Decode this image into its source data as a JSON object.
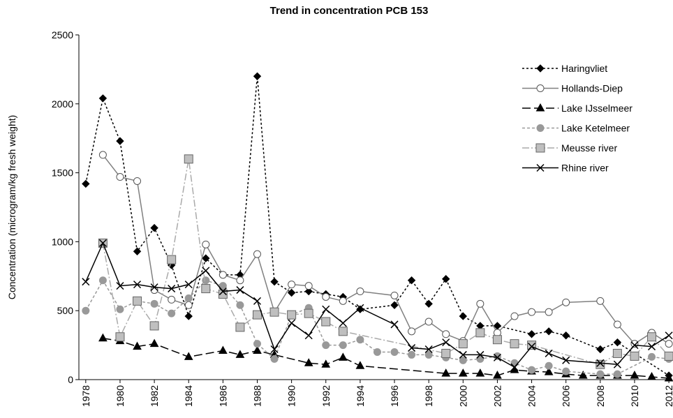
{
  "chart_data": {
    "type": "line",
    "title": "Trend in concentration PCB 153",
    "y_label": "Concentration  (microgram/kg fresh weight)",
    "xlim": [
      1977.6,
      2012.2
    ],
    "xticks": [
      1978,
      1980,
      1982,
      1984,
      1986,
      1988,
      1990,
      1992,
      1994,
      1996,
      1998,
      2000,
      2002,
      2004,
      2006,
      2008,
      2010,
      2012
    ],
    "ylim": [
      0,
      2500
    ],
    "yticks": [
      0,
      500,
      1000,
      1500,
      2000,
      2500
    ],
    "grid": false,
    "legend": "upper-right",
    "series": [
      {
        "name": "Haringvliet",
        "color": "#000000",
        "dash": "3,3",
        "marker": "diamond",
        "marker_fill": "#000000",
        "x": [
          1978,
          1979,
          1980,
          1981,
          1982,
          1983,
          1984,
          1985,
          1986,
          1987,
          1988,
          1989,
          1990,
          1991,
          1992,
          1993,
          1994,
          1996,
          1997,
          1998,
          1999,
          2000,
          2001,
          2002,
          2004,
          2005,
          2006,
          2008,
          2009,
          2012
        ],
        "values": [
          1420,
          2040,
          1730,
          930,
          1100,
          830,
          460,
          880,
          760,
          760,
          2200,
          710,
          630,
          640,
          620,
          600,
          510,
          540,
          720,
          550,
          730,
          460,
          390,
          390,
          330,
          350,
          320,
          220,
          270,
          30
        ]
      },
      {
        "name": "Hollands-Diep",
        "color": "#808080",
        "dash": "",
        "marker": "circle",
        "marker_fill": "#ffffff",
        "x": [
          1979,
          1980,
          1981,
          1982,
          1983,
          1984,
          1985,
          1986,
          1987,
          1988,
          1989,
          1990,
          1991,
          1992,
          1993,
          1994,
          1996,
          1997,
          1998,
          1999,
          2000,
          2001,
          2002,
          2003,
          2004,
          2005,
          2006,
          2008,
          2009,
          2010,
          2011,
          2012
        ],
        "values": [
          1630,
          1470,
          1440,
          650,
          580,
          540,
          980,
          760,
          720,
          910,
          490,
          690,
          680,
          600,
          570,
          640,
          610,
          350,
          420,
          330,
          280,
          550,
          340,
          460,
          490,
          490,
          560,
          570,
          400,
          260,
          340,
          260
        ]
      },
      {
        "name": "Lake IJsselmeer",
        "color": "#000000",
        "dash": "12,5",
        "marker": "triangle",
        "marker_fill": "#000000",
        "x": [
          1979,
          1980,
          1981,
          1982,
          1984,
          1986,
          1987,
          1988,
          1989,
          1991,
          1992,
          1993,
          1994,
          1999,
          2000,
          2001,
          2002,
          2003,
          2004,
          2005,
          2006,
          2007,
          2008,
          2009,
          2010,
          2011,
          2012
        ],
        "values": [
          300,
          280,
          240,
          260,
          165,
          210,
          180,
          210,
          180,
          120,
          110,
          160,
          100,
          45,
          45,
          45,
          30,
          70,
          60,
          55,
          40,
          30,
          30,
          30,
          30,
          20,
          10
        ]
      },
      {
        "name": "Lake Ketelmeer",
        "color": "#999999",
        "dash": "4,3",
        "marker": "circle",
        "marker_fill": "#999999",
        "x": [
          1978,
          1979,
          1980,
          1981,
          1982,
          1983,
          1984,
          1985,
          1986,
          1987,
          1988,
          1989,
          1990,
          1991,
          1992,
          1993,
          1994,
          1995,
          1996,
          1997,
          1998,
          1999,
          2000,
          2001,
          2002,
          2003,
          2004,
          2005,
          2006,
          2008,
          2009,
          2011,
          2012
        ],
        "values": [
          500,
          720,
          510,
          570,
          550,
          480,
          590,
          720,
          680,
          540,
          260,
          150,
          470,
          520,
          250,
          250,
          290,
          200,
          200,
          180,
          180,
          160,
          140,
          150,
          170,
          120,
          70,
          100,
          60,
          40,
          40,
          165,
          150
        ]
      },
      {
        "name": "Meusse river",
        "color": "#aaaaaa",
        "dash": "10,3,2,3",
        "marker": "square",
        "marker_fill": "#bfbfbf",
        "x": [
          1979,
          1980,
          1981,
          1982,
          1983,
          1984,
          1985,
          1986,
          1987,
          1988,
          1989,
          1990,
          1991,
          1992,
          1993,
          1999,
          2000,
          2001,
          2002,
          2003,
          2004,
          2008,
          2009,
          2010,
          2011,
          2012
        ],
        "values": [
          990,
          310,
          570,
          390,
          870,
          1600,
          660,
          620,
          380,
          470,
          490,
          470,
          480,
          420,
          350,
          190,
          260,
          340,
          290,
          260,
          250,
          110,
          190,
          170,
          310,
          170
        ]
      },
      {
        "name": "Rhine river",
        "color": "#000000",
        "dash": "",
        "marker": "cross",
        "marker_fill": "#000000",
        "x": [
          1978,
          1979,
          1980,
          1981,
          1982,
          1983,
          1984,
          1985,
          1986,
          1987,
          1988,
          1989,
          1990,
          1991,
          1992,
          1993,
          1994,
          1996,
          1997,
          1998,
          1999,
          2000,
          2001,
          2002,
          2003,
          2004,
          2005,
          2006,
          2008,
          2009,
          2010,
          2011,
          2012
        ],
        "values": [
          710,
          990,
          680,
          690,
          670,
          660,
          690,
          790,
          640,
          650,
          570,
          220,
          410,
          320,
          510,
          410,
          520,
          400,
          230,
          220,
          270,
          180,
          180,
          160,
          90,
          240,
          190,
          140,
          120,
          110,
          250,
          240,
          320
        ]
      }
    ]
  }
}
